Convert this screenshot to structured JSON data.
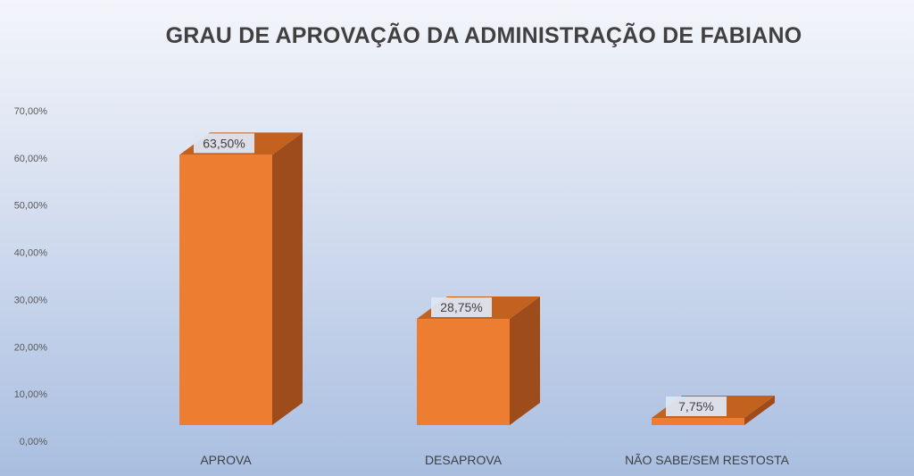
{
  "chart_data": {
    "type": "bar",
    "title": "GRAU DE APROVAÇÃO DA ADMINISTRAÇÃO DE FABIANO",
    "categories": [
      "APROVA",
      "DESAPROVA",
      "NÃO SABE/SEM RESTOSTA"
    ],
    "values": [
      0.635,
      0.2875,
      0.0775
    ],
    "data_labels": [
      "63,50%",
      "28,75%",
      "7,75%"
    ],
    "y_ticks": [
      "0,00%",
      "10,00%",
      "20,00%",
      "30,00%",
      "40,00%",
      "50,00%",
      "60,00%",
      "70,00%"
    ],
    "ylim": [
      0,
      0.7
    ],
    "grid": false,
    "style": "3d",
    "colors": {
      "bar_front": "#ed7d31",
      "bar_side": "#9e4c1b",
      "bar_top": "#c3621f",
      "label_box": "#dde6f3"
    }
  }
}
